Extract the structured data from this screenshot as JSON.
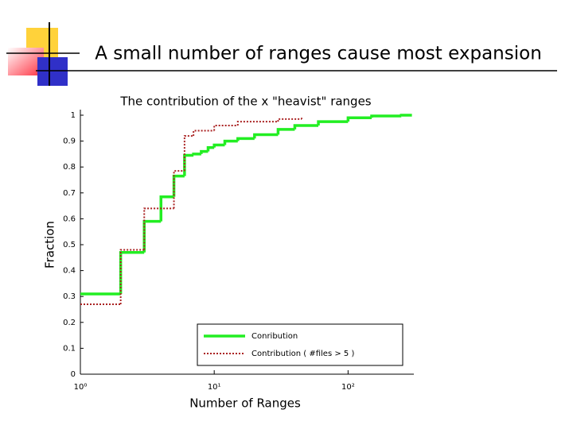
{
  "header": {
    "title": "A small number of ranges cause most expansion"
  },
  "chart_data": {
    "type": "step",
    "title": "The contribution  of the x  \"heavist\" ranges",
    "x_label": "Number of Ranges",
    "y_label": "Fraction",
    "x_scale": "log",
    "xlim": [
      1,
      310
    ],
    "ylim": [
      0,
      1
    ],
    "xticks": [
      {
        "value": 1,
        "label": "10⁰"
      },
      {
        "value": 10,
        "label": "10¹"
      },
      {
        "value": 100,
        "label": "10²"
      }
    ],
    "yticks": [
      0,
      0.1,
      0.2,
      0.3,
      0.4,
      0.5,
      0.6,
      0.7,
      0.8,
      0.9,
      1
    ],
    "legend": "lower right",
    "series": [
      {
        "name": "Conribution",
        "color": "#22ee22",
        "style": "solid",
        "x": [
          1,
          2,
          3,
          4,
          5,
          6,
          7,
          8,
          9,
          10,
          12,
          15,
          20,
          30,
          40,
          60,
          100,
          150,
          250,
          300
        ],
        "values": [
          0.31,
          0.47,
          0.59,
          0.685,
          0.765,
          0.845,
          0.85,
          0.86,
          0.875,
          0.885,
          0.9,
          0.91,
          0.925,
          0.945,
          0.96,
          0.975,
          0.99,
          0.997,
          1.0,
          1.0
        ]
      },
      {
        "name": "Contribution ( #files > 5 )",
        "color": "#aa2222",
        "style": "dotted",
        "x": [
          1,
          2,
          3,
          5,
          6,
          7,
          10,
          15,
          30,
          45
        ],
        "values": [
          0.27,
          0.48,
          0.64,
          0.785,
          0.92,
          0.94,
          0.96,
          0.975,
          0.985,
          0.99
        ]
      }
    ]
  }
}
